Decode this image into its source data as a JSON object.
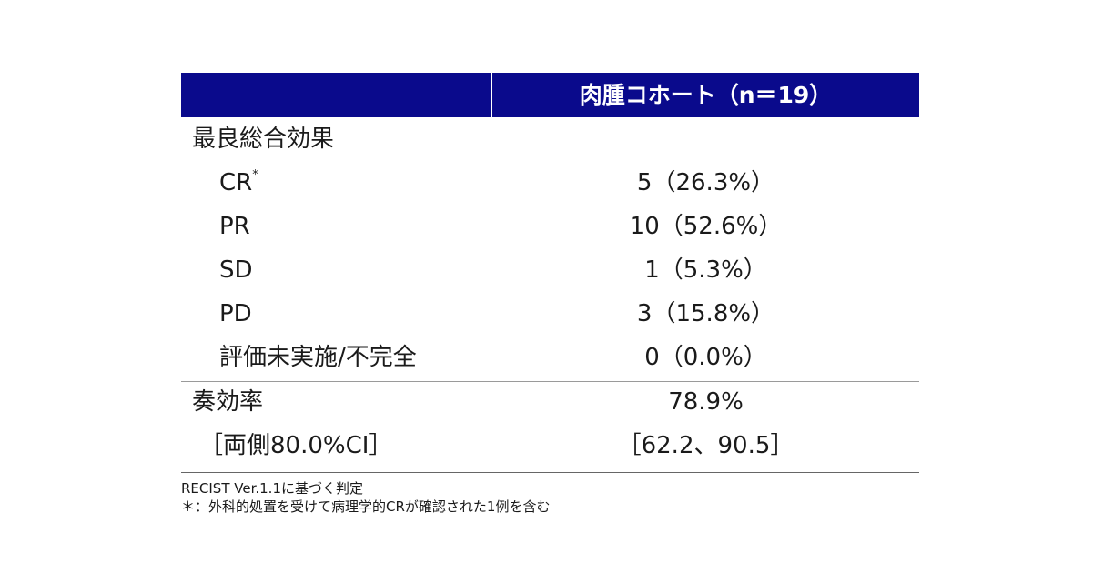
{
  "table": {
    "header": "肉腫コホート（n＝19）",
    "best_response_label": "最良総合効果",
    "rows": [
      {
        "label": "CR",
        "mark": "*",
        "value": "5（26.3%）"
      },
      {
        "label": "PR",
        "value": "10（52.6%）"
      },
      {
        "label": "SD",
        "value": "1（5.3%）"
      },
      {
        "label": "PD",
        "value": "3（15.8%）"
      },
      {
        "label": "評価未実施/不完全",
        "value": "0（0.0%）"
      }
    ],
    "response_rate": {
      "label": "奏効率",
      "value": "78.9%"
    },
    "ci": {
      "label": "［両側80.0%CI］",
      "value": "［62.2、90.5］"
    }
  },
  "footnotes": [
    "RECIST Ver.1.1に基づく判定",
    "＊：外科的処置を受けて病理学的CRが確認された1例を含む"
  ],
  "colors": {
    "header_bg": "#0a0a8c",
    "header_text": "#ffffff"
  }
}
